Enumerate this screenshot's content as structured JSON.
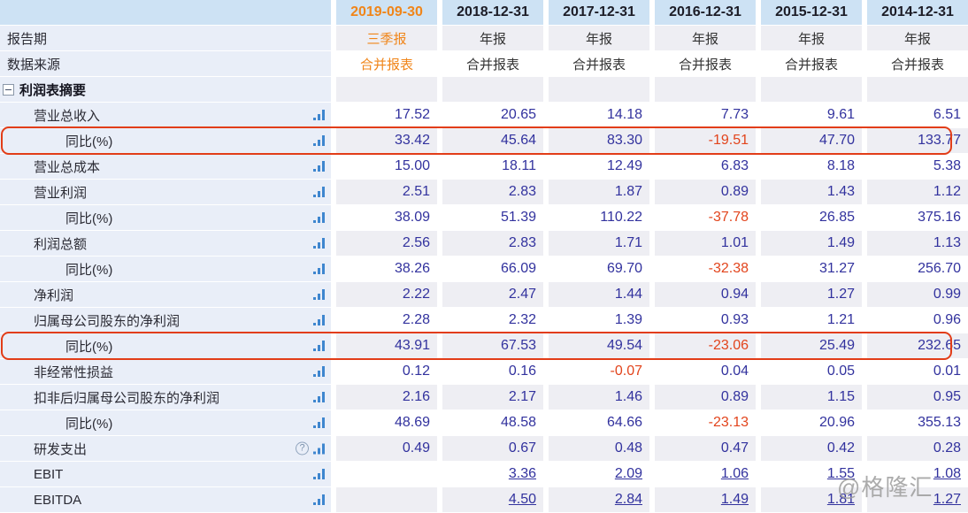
{
  "header": {
    "dates": [
      "2019-09-30",
      "2018-12-31",
      "2017-12-31",
      "2016-12-31",
      "2015-12-31",
      "2014-12-31"
    ]
  },
  "meta_rows": [
    {
      "key": "report-period",
      "label": "报告期",
      "values": [
        "三季报",
        "年报",
        "年报",
        "年报",
        "年报",
        "年报"
      ]
    },
    {
      "key": "data-source",
      "label": "数据来源",
      "values": [
        "合并报表",
        "合并报表",
        "合并报表",
        "合并报表",
        "合并报表",
        "合并报表"
      ]
    }
  ],
  "section": {
    "label": "利润表摘要"
  },
  "rows": [
    {
      "key": "total-revenue",
      "label": "营业总收入",
      "indent": 1,
      "values": [
        "17.52",
        "20.65",
        "14.18",
        "7.73",
        "9.61",
        "6.51"
      ]
    },
    {
      "key": "revenue-yoy",
      "label": "同比(%)",
      "indent": 2,
      "highlight": true,
      "values": [
        "33.42",
        "45.64",
        "83.30",
        "-19.51",
        "47.70",
        "133.77"
      ]
    },
    {
      "key": "total-operating-cost",
      "label": "营业总成本",
      "indent": 1,
      "values": [
        "15.00",
        "18.11",
        "12.49",
        "6.83",
        "8.18",
        "5.38"
      ]
    },
    {
      "key": "operating-profit",
      "label": "营业利润",
      "indent": 1,
      "values": [
        "2.51",
        "2.83",
        "1.87",
        "0.89",
        "1.43",
        "1.12"
      ]
    },
    {
      "key": "operating-profit-yoy",
      "label": "同比(%)",
      "indent": 2,
      "values": [
        "38.09",
        "51.39",
        "110.22",
        "-37.78",
        "26.85",
        "375.16"
      ]
    },
    {
      "key": "total-profit",
      "label": "利润总额",
      "indent": 1,
      "values": [
        "2.56",
        "2.83",
        "1.71",
        "1.01",
        "1.49",
        "1.13"
      ]
    },
    {
      "key": "total-profit-yoy",
      "label": "同比(%)",
      "indent": 2,
      "values": [
        "38.26",
        "66.09",
        "69.70",
        "-32.38",
        "31.27",
        "256.70"
      ]
    },
    {
      "key": "net-profit",
      "label": "净利润",
      "indent": 1,
      "values": [
        "2.22",
        "2.47",
        "1.44",
        "0.94",
        "1.27",
        "0.99"
      ]
    },
    {
      "key": "net-profit-to-parent",
      "label": "归属母公司股东的净利润",
      "indent": 1,
      "values": [
        "2.28",
        "2.32",
        "1.39",
        "0.93",
        "1.21",
        "0.96"
      ]
    },
    {
      "key": "net-profit-to-parent-yoy",
      "label": "同比(%)",
      "indent": 2,
      "highlight": true,
      "values": [
        "43.91",
        "67.53",
        "49.54",
        "-23.06",
        "25.49",
        "232.65"
      ]
    },
    {
      "key": "non-recurring-items",
      "label": "非经常性损益",
      "indent": 1,
      "values": [
        "0.12",
        "0.16",
        "-0.07",
        "0.04",
        "0.05",
        "0.01"
      ]
    },
    {
      "key": "deducted-net-profit-to-parent",
      "label": "扣非后归属母公司股东的净利润",
      "indent": 1,
      "values": [
        "2.16",
        "2.17",
        "1.46",
        "0.89",
        "1.15",
        "0.95"
      ]
    },
    {
      "key": "deducted-net-profit-yoy",
      "label": "同比(%)",
      "indent": 2,
      "values": [
        "48.69",
        "48.58",
        "64.66",
        "-23.13",
        "20.96",
        "355.13"
      ]
    },
    {
      "key": "rd-expense",
      "label": "研发支出",
      "indent": 1,
      "help": true,
      "values": [
        "0.49",
        "0.67",
        "0.48",
        "0.47",
        "0.42",
        "0.28"
      ]
    },
    {
      "key": "ebit",
      "label": "EBIT",
      "indent": 1,
      "link": true,
      "values": [
        "",
        "3.36",
        "2.09",
        "1.06",
        "1.55",
        "1.08"
      ]
    },
    {
      "key": "ebitda",
      "label": "EBITDA",
      "indent": 1,
      "link": true,
      "values": [
        "",
        "4.50",
        "2.84",
        "1.49",
        "1.81",
        "1.27"
      ]
    }
  ],
  "icons": {
    "collapse": "collapse-minus-box",
    "trend": "bar-chart-icon",
    "help": "question-circle"
  },
  "colors": {
    "header_bg": "#cde2f4",
    "label_bg": "#e9eef8",
    "stripe_bg": "#eeeef3",
    "value_text": "#32329e",
    "negative_text": "#e2441c",
    "accent_orange": "#f08519",
    "highlight_border": "#e23d18"
  },
  "watermark": "@格隆汇"
}
